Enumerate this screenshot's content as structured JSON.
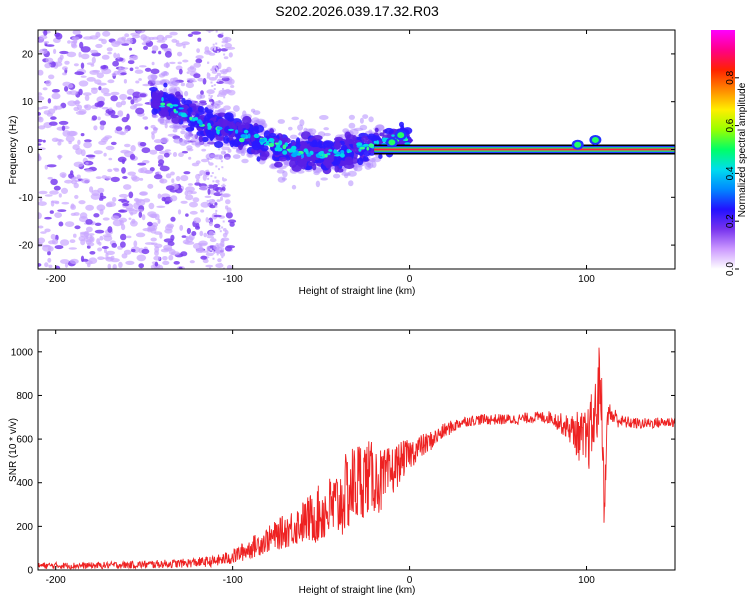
{
  "figure_title": "S202.2026.039.17.32.R03",
  "chart_data": [
    {
      "type": "heatmap",
      "title": "S202.2026.039.17.32.R03",
      "xlabel": "Height of straight line (km)",
      "ylabel": "Frequency (Hz)",
      "xlim": [
        -210,
        150
      ],
      "ylim": [
        -25,
        25
      ],
      "xticks": [
        -200,
        -100,
        0,
        100
      ],
      "yticks": [
        -20,
        -10,
        0,
        10,
        20
      ],
      "colorbar": {
        "label": "Normalized spectral amplitude",
        "range": [
          0,
          1
        ],
        "ticks": [
          0.0,
          0.2,
          0.4,
          0.6,
          0.8
        ],
        "colormap": [
          "#ffffff",
          "#cc99ff",
          "#7733ee",
          "#2211ff",
          "#0088ff",
          "#00ddee",
          "#00ff66",
          "#99ff00",
          "#ffee00",
          "#ff8800",
          "#ff2200",
          "#ff0088",
          "#ff00ff"
        ]
      },
      "ridge": {
        "x": [
          -145,
          -130,
          -115,
          -100,
          -85,
          -70,
          -55,
          -40,
          -30,
          -20,
          -10,
          -5,
          0,
          10,
          20,
          40,
          60,
          80,
          90,
          100,
          105,
          110,
          150
        ],
        "frequency": [
          11,
          8,
          5,
          4,
          2,
          0,
          -1,
          -1,
          0,
          1,
          2,
          3,
          1,
          0,
          0,
          0,
          0,
          0,
          1,
          0,
          2,
          0,
          0
        ]
      },
      "noise_region": {
        "x_min": -210,
        "x_max": -100,
        "y_min": -25,
        "y_max": 25
      }
    },
    {
      "type": "line",
      "xlabel": "Height of straight line (km)",
      "ylabel": "SNR (10 * v/v)",
      "xlim": [
        -210,
        150
      ],
      "ylim": [
        0,
        1100
      ],
      "xticks": [
        -200,
        -100,
        0,
        100
      ],
      "yticks": [
        0,
        200,
        400,
        600,
        800,
        1000
      ],
      "series": [
        {
          "name": "SNR",
          "color": "#ee2222",
          "x": [
            -210,
            -180,
            -150,
            -130,
            -110,
            -100,
            -90,
            -80,
            -70,
            -60,
            -50,
            -40,
            -35,
            -30,
            -25,
            -20,
            -15,
            -10,
            -5,
            0,
            5,
            10,
            15,
            20,
            25,
            30,
            40,
            50,
            60,
            70,
            80,
            90,
            95,
            100,
            105,
            108,
            110,
            112,
            120,
            130,
            150
          ],
          "values": [
            20,
            20,
            25,
            30,
            40,
            60,
            100,
            140,
            180,
            220,
            260,
            300,
            360,
            400,
            430,
            420,
            400,
            450,
            500,
            530,
            560,
            580,
            610,
            640,
            660,
            680,
            690,
            690,
            690,
            700,
            700,
            650,
            620,
            580,
            700,
            900,
            300,
            720,
            680,
            670,
            680
          ],
          "spread": [
            15,
            15,
            18,
            20,
            25,
            35,
            50,
            60,
            80,
            100,
            140,
            170,
            190,
            200,
            180,
            160,
            150,
            120,
            90,
            70,
            60,
            50,
            40,
            35,
            30,
            25,
            25,
            25,
            25,
            25,
            30,
            60,
            110,
            150,
            180,
            200,
            120,
            60,
            30,
            25,
            25
          ]
        }
      ]
    }
  ]
}
